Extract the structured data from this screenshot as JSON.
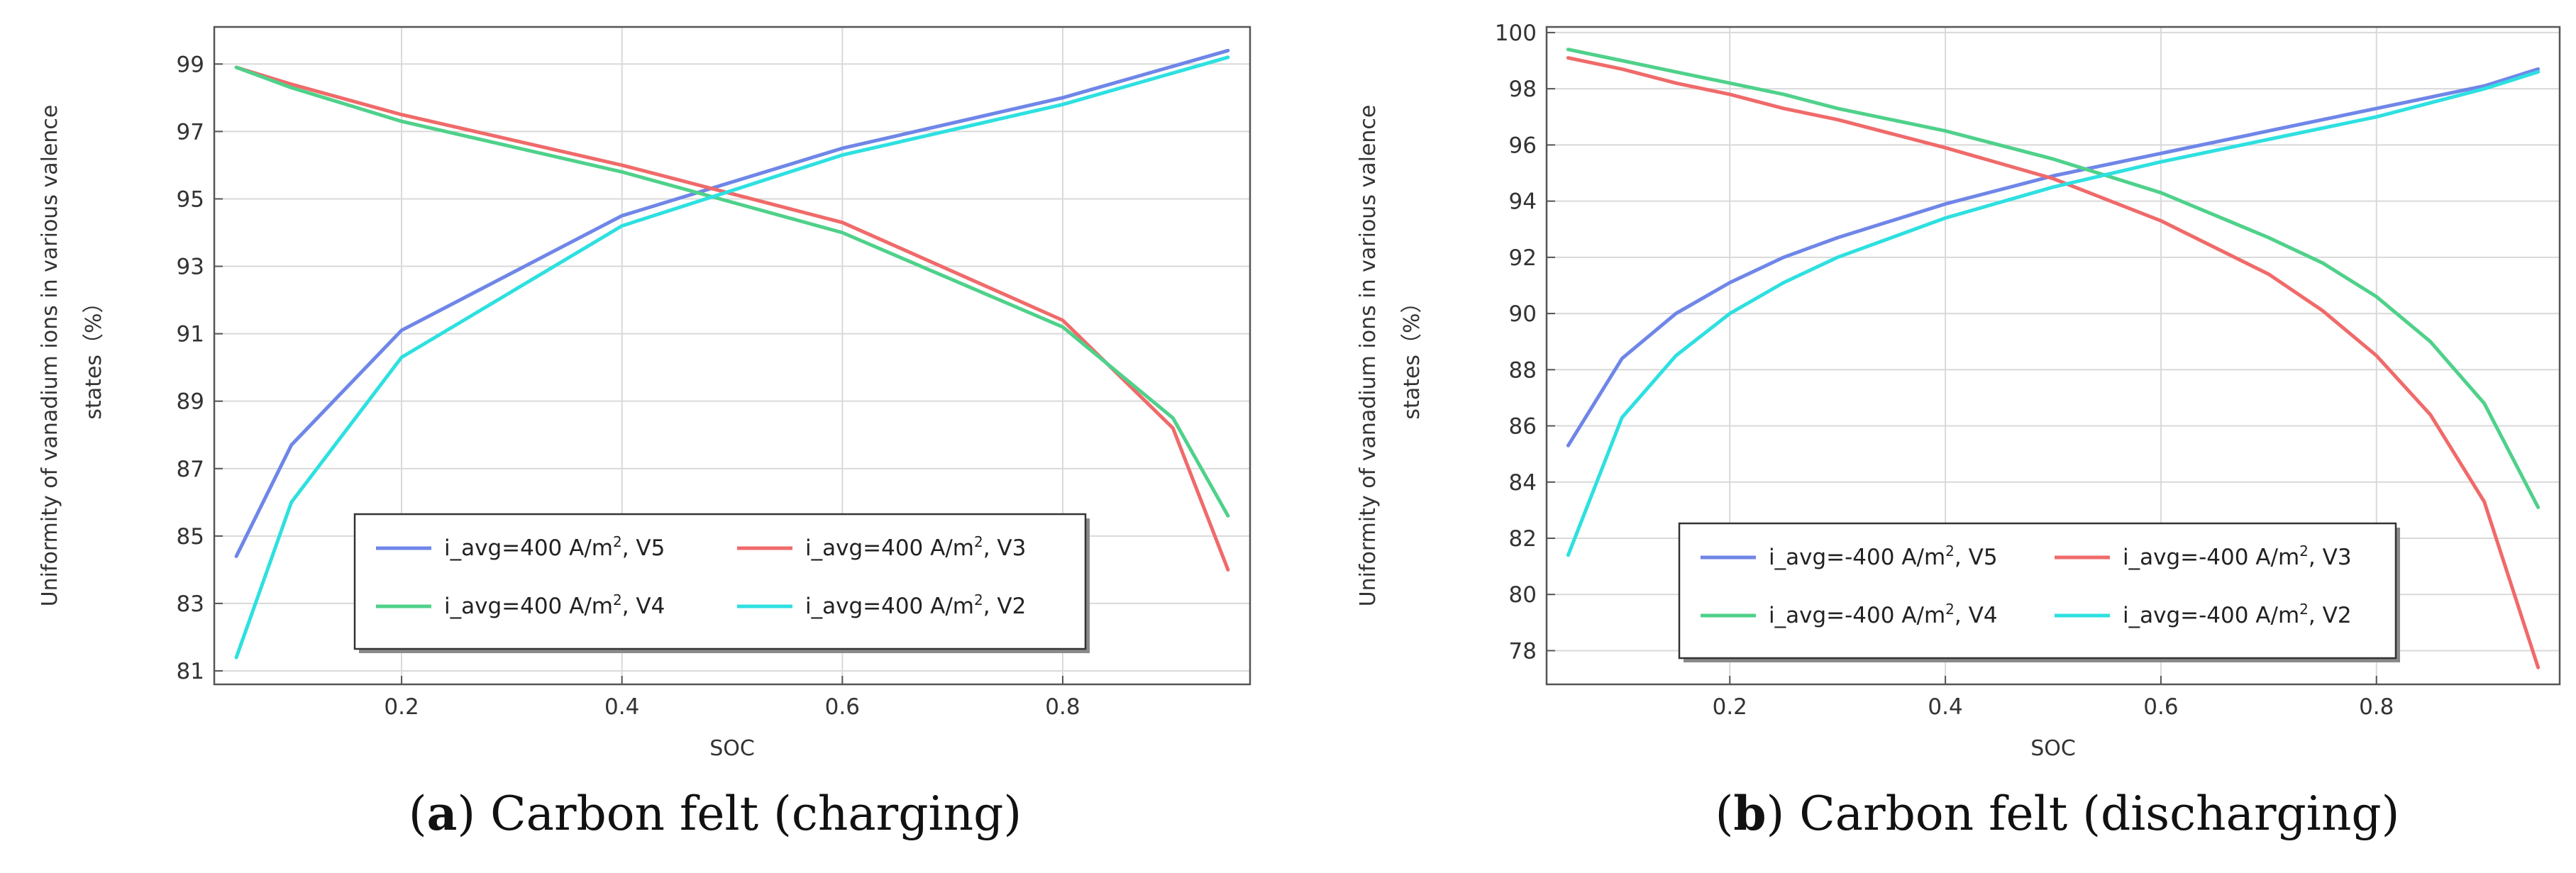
{
  "chart_data": [
    {
      "type": "line",
      "caption": {
        "letter": "a",
        "text": "Carbon felt (charging)"
      },
      "xlabel": "SOC",
      "ylabel": [
        "Uniformity of vanadium ions in various valence",
        "states（%）"
      ],
      "xlim": [
        0.03,
        0.97
      ],
      "ylim": [
        80.6,
        100.1
      ],
      "xticks": [
        "0.2",
        "0.4",
        "0.6",
        "0.8"
      ],
      "yticks": [
        "81",
        "83",
        "85",
        "87",
        "89",
        "91",
        "93",
        "95",
        "97",
        "99"
      ],
      "grid": true,
      "legend": "bottom-right, 2 columns",
      "series": [
        {
          "name": "i_avg=400 A/m², V5",
          "color": "#6f86e8",
          "x": [
            0.05,
            0.1,
            0.2,
            0.4,
            0.6,
            0.8,
            0.95
          ],
          "y": [
            84.4,
            87.7,
            91.1,
            94.5,
            96.5,
            98.0,
            99.4
          ]
        },
        {
          "name": "i_avg=400 A/m², V3",
          "color": "#f06a6a",
          "x": [
            0.05,
            0.1,
            0.2,
            0.4,
            0.6,
            0.8,
            0.9,
            0.95
          ],
          "y": [
            98.9,
            98.4,
            97.5,
            96.0,
            94.3,
            91.4,
            88.2,
            84.0
          ]
        },
        {
          "name": "i_avg=400 A/m², V4",
          "color": "#4fd18a",
          "x": [
            0.05,
            0.1,
            0.2,
            0.4,
            0.6,
            0.8,
            0.9,
            0.95
          ],
          "y": [
            98.9,
            98.3,
            97.3,
            95.8,
            94.0,
            91.2,
            88.5,
            85.6
          ]
        },
        {
          "name": "i_avg=400 A/m², V2",
          "color": "#2ee0e0",
          "x": [
            0.05,
            0.1,
            0.2,
            0.4,
            0.6,
            0.8,
            0.95
          ],
          "y": [
            81.4,
            86.0,
            90.3,
            94.2,
            96.3,
            97.8,
            99.2
          ]
        }
      ]
    },
    {
      "type": "line",
      "caption": {
        "letter": "b",
        "text": "Carbon felt (discharging)"
      },
      "xlabel": "SOC",
      "ylabel": [
        "Uniformity of vanadium ions in various valence",
        "states（%）"
      ],
      "xlim": [
        0.03,
        0.97
      ],
      "ylim": [
        76.8,
        100.2
      ],
      "xticks": [
        "0.2",
        "0.4",
        "0.6",
        "0.8"
      ],
      "yticks": [
        "78",
        "80",
        "82",
        "84",
        "86",
        "88",
        "90",
        "92",
        "94",
        "96",
        "98",
        "100"
      ],
      "grid": true,
      "legend": "bottom-right, 2 columns",
      "series": [
        {
          "name": "i_avg=-400 A/m², V5",
          "color": "#6f86e8",
          "x": [
            0.05,
            0.1,
            0.15,
            0.2,
            0.25,
            0.3,
            0.4,
            0.5,
            0.6,
            0.7,
            0.8,
            0.9,
            0.95
          ],
          "y": [
            85.3,
            88.4,
            90.0,
            91.1,
            92.0,
            92.7,
            93.9,
            94.9,
            95.7,
            96.5,
            97.3,
            98.1,
            98.7
          ]
        },
        {
          "name": "i_avg=-400 A/m², V3",
          "color": "#f06a6a",
          "x": [
            0.05,
            0.1,
            0.15,
            0.2,
            0.25,
            0.3,
            0.4,
            0.5,
            0.6,
            0.7,
            0.75,
            0.8,
            0.85,
            0.9,
            0.95
          ],
          "y": [
            99.1,
            98.7,
            98.2,
            97.8,
            97.3,
            96.9,
            95.9,
            94.8,
            93.3,
            91.4,
            90.1,
            88.5,
            86.4,
            83.3,
            77.4
          ]
        },
        {
          "name": "i_avg=-400 A/m², V4",
          "color": "#4fd18a",
          "x": [
            0.05,
            0.1,
            0.15,
            0.2,
            0.25,
            0.3,
            0.4,
            0.5,
            0.6,
            0.7,
            0.75,
            0.8,
            0.85,
            0.9,
            0.95
          ],
          "y": [
            99.4,
            99.0,
            98.6,
            98.2,
            97.8,
            97.3,
            96.5,
            95.5,
            94.3,
            92.7,
            91.8,
            90.6,
            89.0,
            86.8,
            83.1
          ]
        },
        {
          "name": "i_avg=-400 A/m², V2",
          "color": "#2ee0e0",
          "x": [
            0.05,
            0.1,
            0.15,
            0.2,
            0.25,
            0.3,
            0.4,
            0.5,
            0.6,
            0.7,
            0.8,
            0.9,
            0.95
          ],
          "y": [
            81.4,
            86.3,
            88.5,
            90.0,
            91.1,
            92.0,
            93.4,
            94.5,
            95.4,
            96.2,
            97.0,
            98.0,
            98.6
          ]
        }
      ]
    }
  ]
}
